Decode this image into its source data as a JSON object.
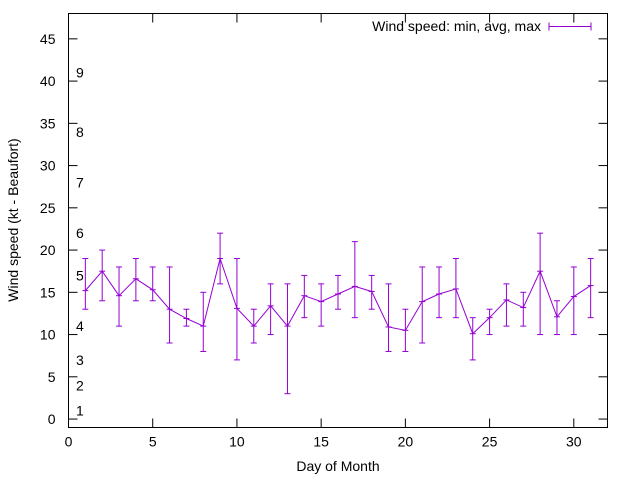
{
  "chart_data": {
    "type": "line",
    "xlabel": "Day of Month",
    "ylabel": "Wind speed (kt - Beaufort)",
    "xlim": [
      0,
      32
    ],
    "ylim": [
      -1,
      48
    ],
    "x_ticks": [
      0,
      5,
      10,
      15,
      20,
      25,
      30
    ],
    "y_ticks": [
      0,
      5,
      10,
      15,
      20,
      25,
      30,
      35,
      40,
      45
    ],
    "grid": false,
    "legend_position": "top-right",
    "series": [
      {
        "name": "Wind speed: min, avg, max",
        "color": "#9400d3",
        "style": "errorbars",
        "x": [
          1,
          2,
          3,
          4,
          5,
          6,
          7,
          8,
          9,
          10,
          11,
          12,
          13,
          14,
          15,
          16,
          17,
          18,
          19,
          20,
          21,
          22,
          23,
          24,
          25,
          26,
          27,
          28,
          29,
          30,
          31
        ],
        "avg": [
          15.2,
          17.5,
          14.6,
          16.6,
          15.3,
          13.0,
          11.9,
          11.0,
          19.0,
          13.1,
          11.0,
          13.4,
          11.0,
          14.6,
          13.9,
          14.8,
          15.7,
          15.1,
          10.9,
          10.5,
          13.9,
          14.8,
          15.4,
          10.1,
          12.0,
          14.1,
          13.2,
          17.5,
          12.1,
          14.5,
          15.8
        ],
        "min": [
          13,
          14,
          11,
          14,
          14,
          9,
          11,
          8,
          16,
          7,
          9,
          10,
          3,
          12,
          11,
          13,
          12,
          13,
          8,
          8,
          9,
          12,
          12,
          7,
          10,
          11,
          11,
          10,
          10,
          10,
          12
        ],
        "max": [
          19,
          20,
          18,
          19,
          18,
          18,
          13,
          15,
          22,
          19,
          13,
          16,
          16,
          17,
          16,
          17,
          21,
          17,
          16,
          13,
          18,
          18,
          19,
          12,
          13,
          16,
          15,
          22,
          14,
          18,
          19
        ]
      }
    ],
    "annotations": [
      {
        "text": "1",
        "y": 1
      },
      {
        "text": "2",
        "y": 4
      },
      {
        "text": "3",
        "y": 7
      },
      {
        "text": "4",
        "y": 11
      },
      {
        "text": "5",
        "y": 17
      },
      {
        "text": "6",
        "y": 22
      },
      {
        "text": "7",
        "y": 28
      },
      {
        "text": "8",
        "y": 34
      },
      {
        "text": "9",
        "y": 41
      }
    ]
  }
}
